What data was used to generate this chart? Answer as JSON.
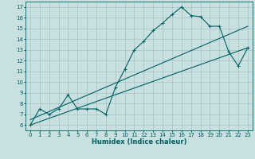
{
  "title": "",
  "xlabel": "Humidex (Indice chaleur)",
  "xlim": [
    -0.5,
    23.5
  ],
  "ylim": [
    5.5,
    17.5
  ],
  "xticks": [
    0,
    1,
    2,
    3,
    4,
    5,
    6,
    7,
    8,
    9,
    10,
    11,
    12,
    13,
    14,
    15,
    16,
    17,
    18,
    19,
    20,
    21,
    22,
    23
  ],
  "yticks": [
    6,
    7,
    8,
    9,
    10,
    11,
    12,
    13,
    14,
    15,
    16,
    17
  ],
  "bg_color": "#c8e0e0",
  "grid_color": "#9bbdbd",
  "line_color": "#006060",
  "series1_x": [
    0,
    1,
    2,
    3,
    4,
    5,
    6,
    7,
    8,
    9,
    10,
    11,
    12,
    13,
    14,
    15,
    16,
    17,
    18,
    19,
    20,
    21,
    22,
    23
  ],
  "series1_y": [
    6.0,
    7.5,
    7.0,
    7.5,
    8.8,
    7.5,
    7.5,
    7.5,
    7.0,
    9.5,
    11.2,
    13.0,
    13.8,
    14.8,
    15.5,
    16.3,
    17.0,
    16.2,
    16.1,
    15.2,
    15.2,
    12.8,
    11.5,
    13.2
  ],
  "series2_x": [
    0,
    23
  ],
  "series2_y": [
    6.0,
    13.2
  ],
  "series3_x": [
    0,
    23
  ],
  "series3_y": [
    6.5,
    15.2
  ],
  "figsize": [
    3.2,
    2.0
  ],
  "dpi": 100,
  "tick_fontsize": 5.0,
  "xlabel_fontsize": 6.0
}
